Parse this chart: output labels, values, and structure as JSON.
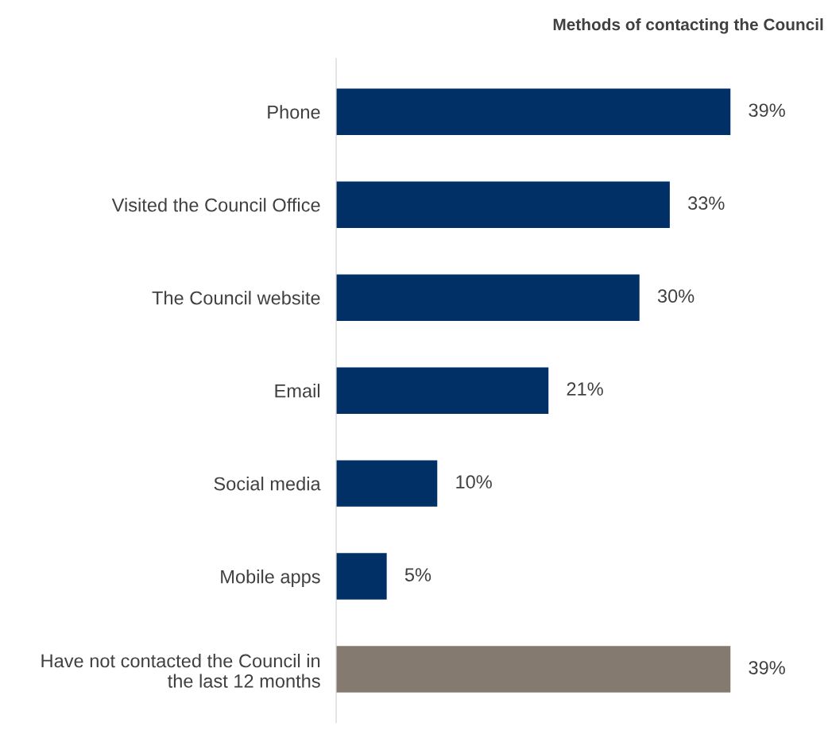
{
  "chart_data": {
    "type": "bar",
    "orientation": "horizontal",
    "title": "Methods of contacting the Council",
    "categories": [
      "Phone",
      "Visited the Council Office",
      "The Council website",
      "Email",
      "Social media",
      "Mobile apps",
      "Have not contacted the Council in the last 12 months"
    ],
    "values": [
      39,
      33,
      30,
      21,
      10,
      5,
      39
    ],
    "colors": [
      "#003066",
      "#003066",
      "#003066",
      "#003066",
      "#003066",
      "#003066",
      "#857a70"
    ],
    "value_labels": [
      "39%",
      "33%",
      "30%",
      "21%",
      "10%",
      "5%",
      "39%"
    ],
    "grid": false,
    "legend": false
  }
}
